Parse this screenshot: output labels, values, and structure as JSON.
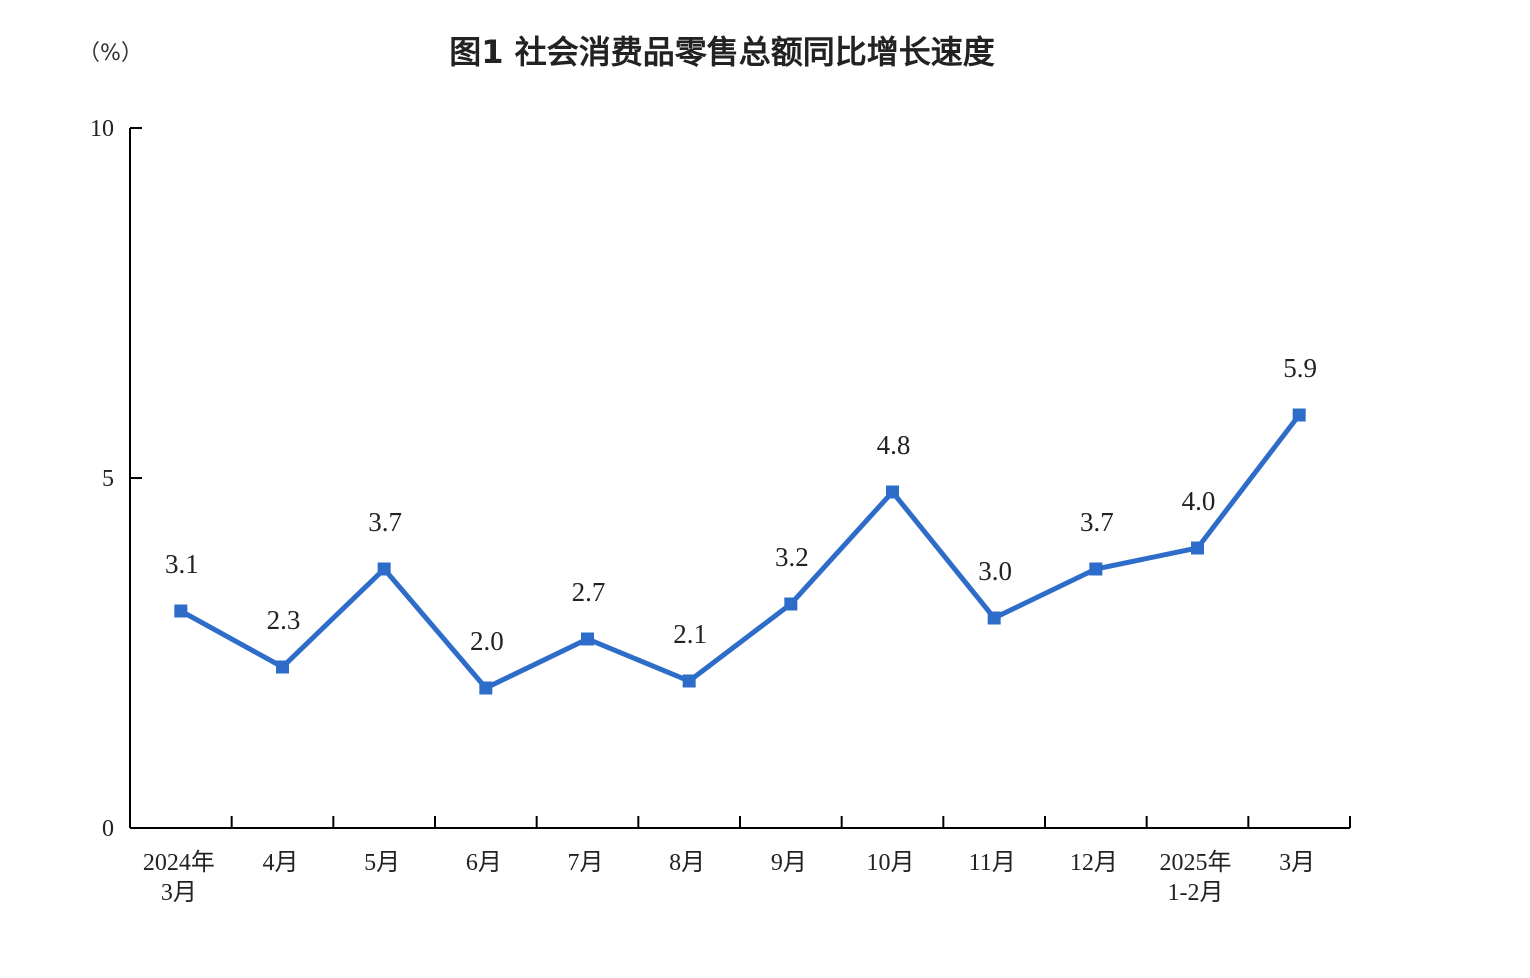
{
  "chart_data": {
    "type": "line",
    "title": "图1  社会消费品零售总额同比增长速度",
    "unit": "（%）",
    "xlabel": "",
    "ylabel": "",
    "ylim": [
      0,
      10
    ],
    "yticks": [
      "0",
      "5",
      "10"
    ],
    "grid": false,
    "legend": "none",
    "categories": [
      [
        "2024年",
        "3月"
      ],
      [
        "4月"
      ],
      [
        "5月"
      ],
      [
        "6月"
      ],
      [
        "7月"
      ],
      [
        "8月"
      ],
      [
        "9月"
      ],
      [
        "10月"
      ],
      [
        "11月"
      ],
      [
        "12月"
      ],
      [
        "2025年",
        "1-2月"
      ],
      [
        "3月"
      ]
    ],
    "series": [
      {
        "values": [
          3.1,
          2.3,
          3.7,
          2.0,
          2.7,
          2.1,
          3.2,
          4.8,
          3.0,
          3.7,
          4.0,
          5.9
        ],
        "labels": [
          "3.1",
          "2.3",
          "3.7",
          "2.0",
          "2.7",
          "2.1",
          "3.2",
          "4.8",
          "3.0",
          "3.7",
          "4.0",
          "5.9"
        ],
        "color": "#2E6CC9",
        "marker": "square"
      }
    ]
  }
}
